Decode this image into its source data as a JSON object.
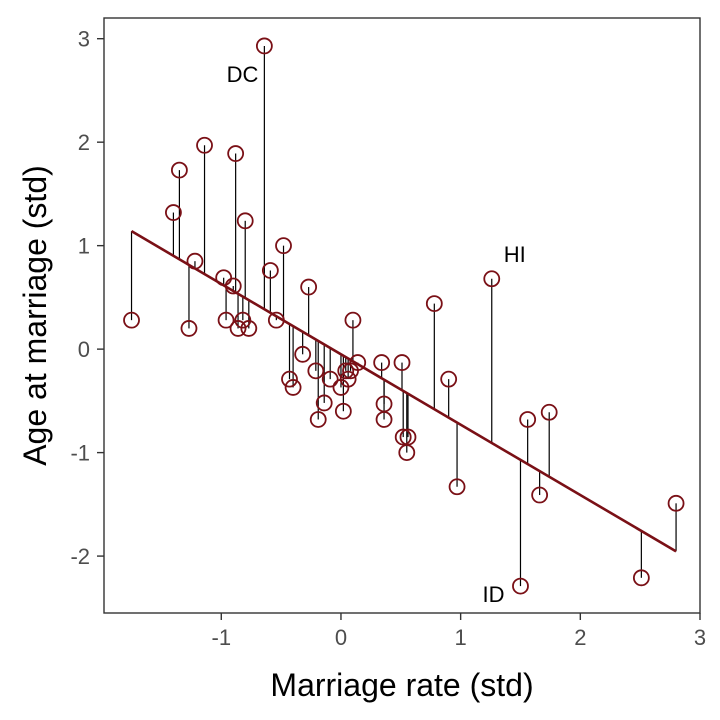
{
  "chart_data": {
    "type": "scatter",
    "title": "",
    "xlabel": "Marriage rate (std)",
    "ylabel": "Age at marriage (std)",
    "xlim": [
      -1.98,
      3.0
    ],
    "ylim": [
      -2.55,
      3.2
    ],
    "xticks": [
      -1,
      0,
      1,
      2,
      3
    ],
    "yticks": [
      -2,
      -1,
      0,
      1,
      2,
      3
    ],
    "xtick_labels": [
      "-1",
      "0",
      "1",
      "2",
      "3"
    ],
    "ytick_labels": [
      "-2",
      "-1",
      "0",
      "1",
      "2",
      "3"
    ],
    "grid": false,
    "regression": {
      "intercept": -0.05,
      "slope": -0.68
    },
    "colors": {
      "point": "#7a1016",
      "line": "#7a1016",
      "residual": "#000000",
      "frame": "#333333"
    },
    "points": [
      {
        "x": -1.75,
        "y": 0.28
      },
      {
        "x": -1.4,
        "y": 1.32
      },
      {
        "x": -1.35,
        "y": 1.73
      },
      {
        "x": -1.27,
        "y": 0.2
      },
      {
        "x": -1.22,
        "y": 0.85
      },
      {
        "x": -1.14,
        "y": 1.97
      },
      {
        "x": -0.98,
        "y": 0.69
      },
      {
        "x": -0.96,
        "y": 0.28
      },
      {
        "x": -0.9,
        "y": 0.61
      },
      {
        "x": -0.88,
        "y": 1.89
      },
      {
        "x": -0.86,
        "y": 0.2
      },
      {
        "x": -0.82,
        "y": 0.28
      },
      {
        "x": -0.8,
        "y": 1.24
      },
      {
        "x": -0.77,
        "y": 0.2
      },
      {
        "x": -0.64,
        "y": 2.93
      },
      {
        "x": -0.59,
        "y": 0.76
      },
      {
        "x": -0.54,
        "y": 0.28
      },
      {
        "x": -0.48,
        "y": 1.0
      },
      {
        "x": -0.43,
        "y": -0.29
      },
      {
        "x": -0.4,
        "y": -0.37
      },
      {
        "x": -0.32,
        "y": -0.05
      },
      {
        "x": -0.27,
        "y": 0.6
      },
      {
        "x": -0.21,
        "y": -0.21
      },
      {
        "x": -0.19,
        "y": -0.68
      },
      {
        "x": -0.14,
        "y": -0.52
      },
      {
        "x": -0.09,
        "y": -0.29
      },
      {
        "x": 0.0,
        "y": -0.37
      },
      {
        "x": 0.02,
        "y": -0.6
      },
      {
        "x": 0.04,
        "y": -0.21
      },
      {
        "x": 0.06,
        "y": -0.29
      },
      {
        "x": 0.08,
        "y": -0.21
      },
      {
        "x": 0.1,
        "y": 0.28
      },
      {
        "x": 0.14,
        "y": -0.13
      },
      {
        "x": 0.34,
        "y": -0.13
      },
      {
        "x": 0.36,
        "y": -0.53
      },
      {
        "x": 0.36,
        "y": -0.68
      },
      {
        "x": 0.51,
        "y": -0.13
      },
      {
        "x": 0.52,
        "y": -0.85
      },
      {
        "x": 0.55,
        "y": -1.0
      },
      {
        "x": 0.56,
        "y": -0.85
      },
      {
        "x": 0.78,
        "y": 0.44
      },
      {
        "x": 0.9,
        "y": -0.29
      },
      {
        "x": 0.97,
        "y": -1.33
      },
      {
        "x": 1.26,
        "y": 0.68,
        "label": "HI"
      },
      {
        "x": 1.5,
        "y": -2.29,
        "label": "ID"
      },
      {
        "x": 1.56,
        "y": -0.68
      },
      {
        "x": 1.66,
        "y": -1.41
      },
      {
        "x": 1.74,
        "y": -0.61
      },
      {
        "x": 2.51,
        "y": -2.21
      },
      {
        "x": 2.8,
        "y": -1.49
      }
    ],
    "annotations": [
      {
        "text": "DC",
        "x": -0.64,
        "y": 2.93,
        "anchor": "below-left"
      },
      {
        "text": "HI",
        "x": 1.26,
        "y": 0.68,
        "anchor": "above-right"
      },
      {
        "text": "ID",
        "x": 1.5,
        "y": -2.29,
        "anchor": "left"
      }
    ]
  }
}
